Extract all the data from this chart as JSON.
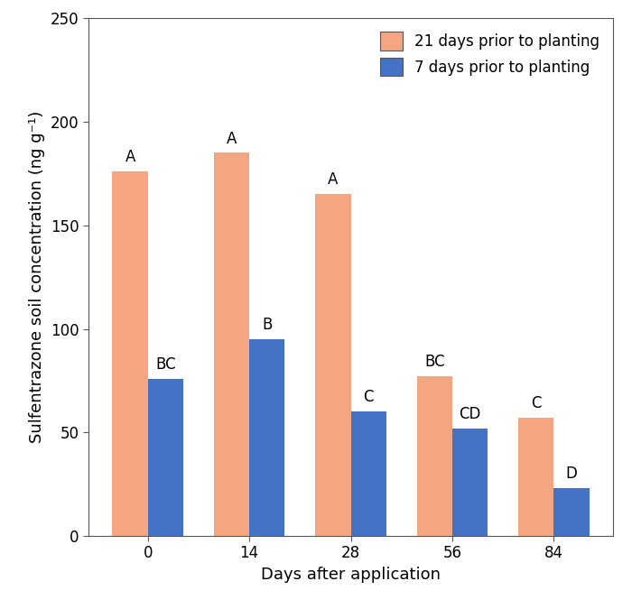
{
  "days": [
    0,
    14,
    28,
    56,
    84
  ],
  "series_21": [
    176,
    185,
    165,
    77,
    57
  ],
  "series_7": [
    76,
    95,
    60,
    52,
    23
  ],
  "labels_21": [
    "A",
    "A",
    "A",
    "BC",
    "C"
  ],
  "labels_7": [
    "BC",
    "B",
    "C",
    "CD",
    "D"
  ],
  "color_21": "#F4A582",
  "color_7": "#4472C4",
  "ylabel": "Sulfentrazone soil concentration (ng g⁻¹)",
  "xlabel": "Days after application",
  "legend_21": "21 days prior to planting",
  "legend_7": "7 days prior to planting",
  "ylim": [
    0,
    250
  ],
  "yticks": [
    0,
    50,
    100,
    150,
    200,
    250
  ],
  "bar_width": 0.35,
  "label_fontsize": 12,
  "tick_fontsize": 12,
  "axis_label_fontsize": 13,
  "spine_color": "#555555",
  "fig_bg": "#ffffff"
}
